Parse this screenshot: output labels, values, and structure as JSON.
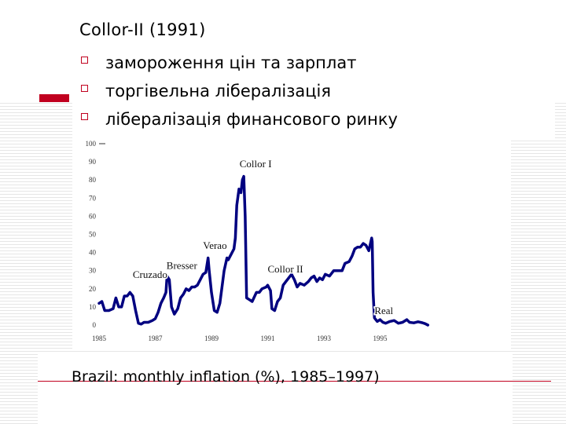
{
  "slide": {
    "title": "Collor-II (1991)",
    "bullets": [
      "замороження цін та зарплат",
      "торгівельна лібералізація",
      "лібералізація финансового ринку"
    ],
    "caption": "Brazil: monthly inflation (%), 1985–1997)",
    "accent_color": "#c1001f",
    "bullet_icon": "hollow-square-icon"
  },
  "chart_data": {
    "type": "line",
    "xlabel": "",
    "ylabel": "",
    "xlim": [
      1985,
      1997
    ],
    "ylim": [
      0,
      100
    ],
    "y_ticks": [
      "0",
      "10",
      "20",
      "30",
      "40",
      "50",
      "60",
      "70",
      "80",
      "90",
      "100"
    ],
    "x_ticks": [
      "1985",
      "1987",
      "1989",
      "1991",
      "1993",
      "1995"
    ],
    "line_color": "#000080",
    "annotations": [
      {
        "label": "Cruzado",
        "x": 1986.2,
        "y": 26
      },
      {
        "label": "Bresser",
        "x": 1987.4,
        "y": 31
      },
      {
        "label": "Verao",
        "x": 1988.7,
        "y": 42
      },
      {
        "label": "Collor I",
        "x": 1990.0,
        "y": 87
      },
      {
        "label": "Collor II",
        "x": 1991.0,
        "y": 29
      },
      {
        "label": "Real",
        "x": 1994.8,
        "y": 6
      }
    ],
    "series": [
      {
        "values": [
          [
            1985.0,
            12
          ],
          [
            1985.1,
            13
          ],
          [
            1985.2,
            8
          ],
          [
            1985.35,
            8
          ],
          [
            1985.5,
            9
          ],
          [
            1985.6,
            15
          ],
          [
            1985.7,
            10
          ],
          [
            1985.8,
            10
          ],
          [
            1985.9,
            16
          ],
          [
            1986.0,
            16
          ],
          [
            1986.1,
            18
          ],
          [
            1986.2,
            16
          ],
          [
            1986.3,
            8
          ],
          [
            1986.4,
            1
          ],
          [
            1986.5,
            0.5
          ],
          [
            1986.6,
            1.5
          ],
          [
            1986.75,
            1.5
          ],
          [
            1986.9,
            2.5
          ],
          [
            1987.0,
            3.5
          ],
          [
            1987.1,
            7
          ],
          [
            1987.2,
            12
          ],
          [
            1987.3,
            15
          ],
          [
            1987.38,
            18
          ],
          [
            1987.42,
            27
          ],
          [
            1987.5,
            25
          ],
          [
            1987.58,
            10
          ],
          [
            1987.68,
            6
          ],
          [
            1987.8,
            9
          ],
          [
            1987.9,
            15
          ],
          [
            1988.0,
            17
          ],
          [
            1988.1,
            20
          ],
          [
            1988.2,
            19
          ],
          [
            1988.3,
            21
          ],
          [
            1988.4,
            21
          ],
          [
            1988.5,
            22
          ],
          [
            1988.6,
            25
          ],
          [
            1988.7,
            28
          ],
          [
            1988.8,
            29
          ],
          [
            1988.88,
            37
          ],
          [
            1988.92,
            30
          ],
          [
            1989.0,
            18
          ],
          [
            1989.1,
            8
          ],
          [
            1989.2,
            7
          ],
          [
            1989.3,
            12
          ],
          [
            1989.4,
            24
          ],
          [
            1989.45,
            30
          ],
          [
            1989.55,
            37
          ],
          [
            1989.6,
            36
          ],
          [
            1989.7,
            39
          ],
          [
            1989.8,
            42
          ],
          [
            1989.85,
            48
          ],
          [
            1989.9,
            66
          ],
          [
            1989.98,
            75
          ],
          [
            1990.05,
            73
          ],
          [
            1990.1,
            80
          ],
          [
            1990.15,
            82
          ],
          [
            1990.2,
            60
          ],
          [
            1990.25,
            15
          ],
          [
            1990.35,
            14
          ],
          [
            1990.45,
            13
          ],
          [
            1990.6,
            18
          ],
          [
            1990.7,
            18
          ],
          [
            1990.8,
            20
          ],
          [
            1990.95,
            21
          ],
          [
            1991.0,
            22
          ],
          [
            1991.1,
            19
          ],
          [
            1991.15,
            9
          ],
          [
            1991.25,
            8
          ],
          [
            1991.35,
            13
          ],
          [
            1991.45,
            15
          ],
          [
            1991.55,
            22
          ],
          [
            1991.65,
            24
          ],
          [
            1991.75,
            26
          ],
          [
            1991.85,
            28
          ],
          [
            1991.95,
            25
          ],
          [
            1992.05,
            21
          ],
          [
            1992.15,
            23
          ],
          [
            1992.3,
            22
          ],
          [
            1992.45,
            24
          ],
          [
            1992.55,
            26
          ],
          [
            1992.65,
            27
          ],
          [
            1992.75,
            24
          ],
          [
            1992.85,
            26
          ],
          [
            1992.95,
            25
          ],
          [
            1993.05,
            28
          ],
          [
            1993.2,
            27
          ],
          [
            1993.35,
            30
          ],
          [
            1993.5,
            30
          ],
          [
            1993.65,
            30
          ],
          [
            1993.75,
            34
          ],
          [
            1993.9,
            35
          ],
          [
            1994.0,
            38
          ],
          [
            1994.1,
            42
          ],
          [
            1994.2,
            43
          ],
          [
            1994.3,
            43
          ],
          [
            1994.4,
            45
          ],
          [
            1994.5,
            44
          ],
          [
            1994.6,
            41
          ],
          [
            1994.7,
            48
          ],
          [
            1994.72,
            46
          ],
          [
            1994.75,
            18
          ],
          [
            1994.8,
            4
          ],
          [
            1994.9,
            2
          ],
          [
            1995.0,
            3
          ],
          [
            1995.1,
            1.5
          ],
          [
            1995.2,
            1
          ],
          [
            1995.35,
            2
          ],
          [
            1995.5,
            2.5
          ],
          [
            1995.65,
            1
          ],
          [
            1995.8,
            1.5
          ],
          [
            1995.95,
            3
          ],
          [
            1996.05,
            1.5
          ],
          [
            1996.2,
            1.2
          ],
          [
            1996.35,
            1.8
          ],
          [
            1996.5,
            1.3
          ],
          [
            1996.6,
            0.8
          ],
          [
            1996.7,
            0
          ]
        ]
      }
    ]
  }
}
